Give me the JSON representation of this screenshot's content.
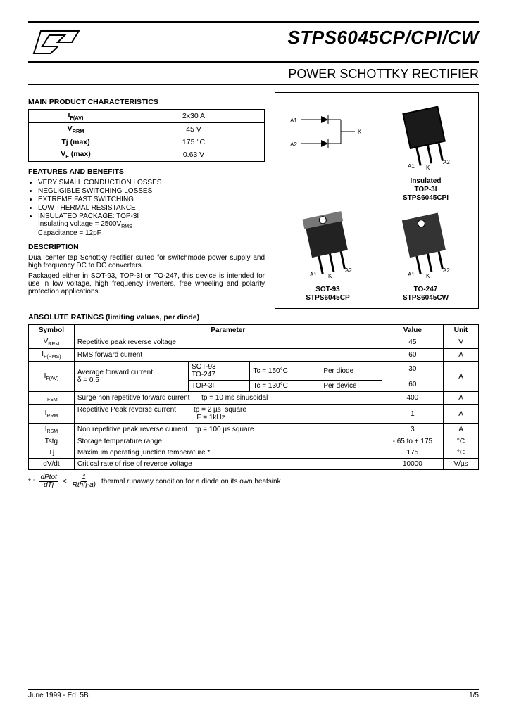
{
  "header": {
    "part_number": "STPS6045CP/CPI/CW",
    "subtitle": "POWER SCHOTTKY RECTIFIER"
  },
  "sections": {
    "main_char": "MAIN PRODUCT CHARACTERISTICS",
    "features": "FEATURES AND BENEFITS",
    "description": "DESCRIPTION",
    "abs_ratings": "ABSOLUTE RATINGS (limiting values, per diode)"
  },
  "char_table": [
    {
      "sym": "I<sub>F(AV)</sub>",
      "val": "2x30 A"
    },
    {
      "sym": "V<sub>RRM</sub>",
      "val": "45 V"
    },
    {
      "sym": "Tj (max)",
      "val": "175 °C"
    },
    {
      "sym": "V<sub>F</sub> (max)",
      "val": "0.63 V"
    }
  ],
  "features_list": [
    "VERY SMALL CONDUCTION LOSSES",
    "NEGLIGIBLE SWITCHING LOSSES",
    "EXTREME FAST SWITCHING",
    "LOW THERMAL RESISTANCE",
    "INSULATED PACKAGE: TOP-3I<br>Insulating voltage = 2500V<sub>RMS</sub><br>Capacitance = 12pF"
  ],
  "description_paras": [
    "Dual center tap Schottky rectifier suited for switchmode power supply and high frequency DC to DC converters.",
    "Packaged either in SOT-93, TOP-3I or TO-247, this device is intended for use in low voltage, high frequency inverters, free wheeling and polarity protection applications."
  ],
  "packages": {
    "top_right": {
      "name": "Insulated",
      "type": "TOP-3I",
      "part": "STPS6045CPI"
    },
    "bottom_left": {
      "type": "SOT-93",
      "part": "STPS6045CP"
    },
    "bottom_right": {
      "type": "TO-247",
      "part": "STPS6045CW"
    }
  },
  "pinout": {
    "a1": "A1",
    "a2": "A2",
    "k": "K"
  },
  "ratings_headers": {
    "symbol": "Symbol",
    "parameter": "Parameter",
    "value": "Value",
    "unit": "Unit"
  },
  "ratings": [
    {
      "sym": "V<sub>RRM</sub>",
      "param": "Repetitive peak reverse voltage",
      "val": "45",
      "unit": "V"
    },
    {
      "sym": "I<sub>F(RMS)</sub>",
      "param": "RMS forward current",
      "val": "60",
      "unit": "A"
    },
    {
      "sym": "I<sub>FSM</sub>",
      "param": "Surge non repetitive forward current &nbsp;&nbsp;&nbsp;&nbsp; tp = 10 ms sinusoidal",
      "val": "400",
      "unit": "A"
    },
    {
      "sym": "I<sub>RRM</sub>",
      "param": "Repetitive Peak reverse current &nbsp;&nbsp;&nbsp;&nbsp;&nbsp;&nbsp;&nbsp; tp = 2 µs &nbsp;square<br>&nbsp;&nbsp;&nbsp;&nbsp;&nbsp;&nbsp;&nbsp;&nbsp;&nbsp;&nbsp;&nbsp;&nbsp;&nbsp;&nbsp;&nbsp;&nbsp;&nbsp;&nbsp;&nbsp;&nbsp;&nbsp;&nbsp;&nbsp;&nbsp;&nbsp;&nbsp;&nbsp;&nbsp;&nbsp;&nbsp;&nbsp;&nbsp;&nbsp;&nbsp;&nbsp;&nbsp;&nbsp;&nbsp;&nbsp;&nbsp;&nbsp;&nbsp;&nbsp;&nbsp;&nbsp;&nbsp;&nbsp;&nbsp;&nbsp;&nbsp;&nbsp;&nbsp;&nbsp;&nbsp;&nbsp;&nbsp;&nbsp;&nbsp;&nbsp;&nbsp; F = 1kHz",
      "val": "1",
      "unit": "A"
    },
    {
      "sym": "I<sub>RSM</sub>",
      "param": "Non repetitive peak reverse current &nbsp;&nbsp; tp = 100 µs square",
      "val": "3",
      "unit": "A"
    },
    {
      "sym": "Tstg",
      "param": "Storage temperature range",
      "val": "- 65  to + 175",
      "unit": "°C"
    },
    {
      "sym": "Tj",
      "param": "Maximum operating junction temperature *",
      "val": "175",
      "unit": "°C"
    },
    {
      "sym": "dV/dt",
      "param": "Critical rate of rise of reverse voltage",
      "val": "10000",
      "unit": "V/µs"
    }
  ],
  "ifav_block": {
    "label": "Average forward current<br>δ = 0.5",
    "pkg1": "SOT-93<br>TO-247",
    "cond1": "Tc = 150°C",
    "scope1": "Per  diode",
    "val1": "30",
    "pkg2": "TOP-3I",
    "cond2": "Tc = 130°C",
    "scope2": "Per device",
    "val2": "60",
    "unit": "A"
  },
  "footnote_text": "thermal  runaway condition for a diode on its own heatsink",
  "footer": {
    "date": "June 1999 - Ed: 5B",
    "page": "1/5"
  },
  "colors": {
    "text": "#000000",
    "bg": "#ffffff"
  }
}
